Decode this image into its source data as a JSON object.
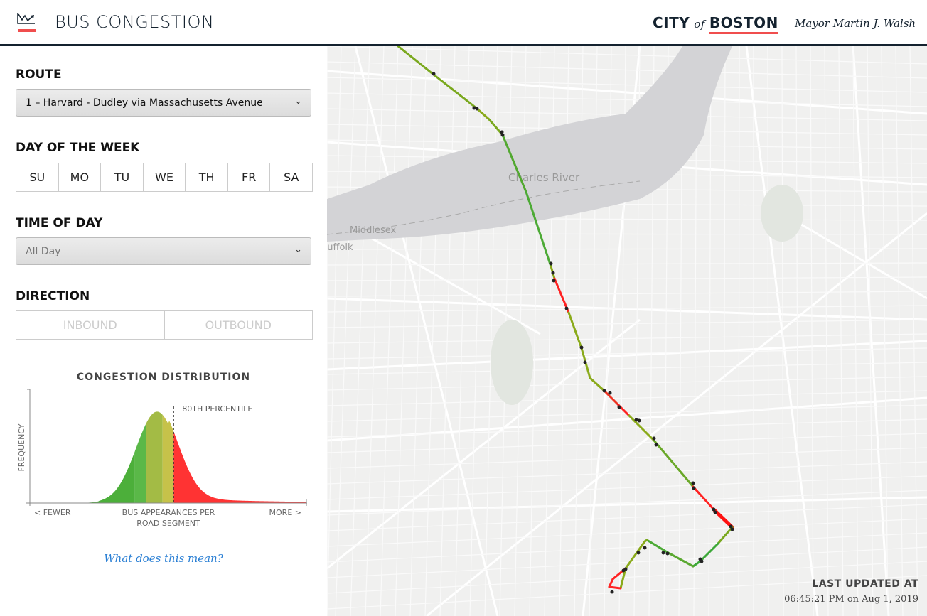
{
  "header": {
    "title": "BUS CONGESTION",
    "city_prefix": "CITY",
    "city_of": "of",
    "city_name": "BOSTON",
    "mayor": "Mayor Martin J. Walsh"
  },
  "sidebar": {
    "route_label": "ROUTE",
    "route_value": "1 – Harvard - Dudley via Massachusetts Avenue",
    "day_label": "DAY OF THE WEEK",
    "days": [
      "SU",
      "MO",
      "TU",
      "WE",
      "TH",
      "FR",
      "SA"
    ],
    "time_label": "TIME OF DAY",
    "time_value": "All Day",
    "direction_label": "DIRECTION",
    "directions": [
      "INBOUND",
      "OUTBOUND"
    ],
    "help_link": "What does this mean?"
  },
  "chart_data": {
    "type": "area",
    "title": "CONGESTION DISTRIBUTION",
    "xlabel": "BUS APPEARANCES PER ROAD SEGMENT",
    "ylabel": "FREQUENCY",
    "x_left_label": "< FEWER",
    "x_right_label": "MORE >",
    "annotation": "80TH PERCENTILE",
    "x": [
      0,
      0.1,
      0.2,
      0.3,
      0.35,
      0.4,
      0.45,
      0.5,
      0.55,
      0.6,
      0.65,
      0.7,
      0.8,
      0.9,
      1.0
    ],
    "y": [
      0,
      0,
      0.005,
      0.01,
      0.1,
      0.55,
      0.95,
      0.8,
      0.35,
      0.1,
      0.04,
      0.02,
      0.01,
      0.01,
      0
    ],
    "percentile_80": 0.52,
    "colors": [
      "#4caf3a",
      "#5ab848",
      "#a3bb45",
      "#c6c24a",
      "#ff3333"
    ]
  },
  "map": {
    "labels": [
      "Charles River",
      "Middlesex",
      "Suffolk"
    ],
    "updated_label": "LAST UPDATED AT",
    "updated_value": "06:45:21 PM on Aug 1, 2019"
  }
}
